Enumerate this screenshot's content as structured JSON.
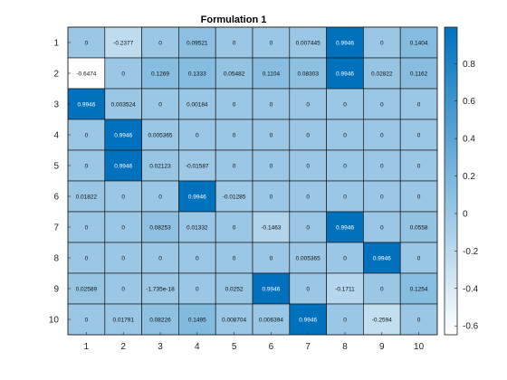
{
  "chart_data": {
    "type": "heatmap",
    "title": "Formulation 1",
    "x_labels": [
      "1",
      "2",
      "3",
      "4",
      "5",
      "6",
      "7",
      "8",
      "9",
      "10"
    ],
    "y_labels": [
      "1",
      "2",
      "3",
      "4",
      "5",
      "6",
      "7",
      "8",
      "9",
      "10"
    ],
    "cell_labels": [
      [
        "0",
        "-0.2377",
        "0",
        "0.09521",
        "0",
        "0",
        "0.007445",
        "0.9946",
        "0",
        "0.1404"
      ],
      [
        "-0.6474",
        "0",
        "0.1269",
        "0.1333",
        "0.05482",
        "0.1104",
        "0.08303",
        "0.9946",
        "0.02822",
        "0.1162"
      ],
      [
        "0.9946",
        "0.003524",
        "0",
        "0.00184",
        "0",
        "0",
        "0",
        "0",
        "0",
        "0"
      ],
      [
        "0",
        "0.9946",
        "0.005365",
        "0",
        "0",
        "0",
        "0",
        "0",
        "0",
        "0"
      ],
      [
        "0",
        "0.9946",
        "0.02123",
        "-0.01587",
        "0",
        "0",
        "0",
        "0",
        "0",
        "0"
      ],
      [
        "0.01822",
        "0",
        "0",
        "0.9946",
        "-0.01285",
        "0",
        "0",
        "0",
        "0",
        "0"
      ],
      [
        "0",
        "0",
        "0.08253",
        "0.01332",
        "0",
        "-0.1463",
        "0",
        "0.9946",
        "0",
        "0.0558"
      ],
      [
        "0",
        "0",
        "0",
        "0",
        "0",
        "0",
        "0.005365",
        "0",
        "0.9946",
        "0"
      ],
      [
        "0.02589",
        "0",
        "-1.735e-18",
        "0",
        "0.0252",
        "0.9946",
        "0",
        "-0.1711",
        "0",
        "0.1254"
      ],
      [
        "0",
        "0.01791",
        "0.08226",
        "0.1495",
        "0.008704",
        "0.006394",
        "0.9946",
        "0",
        "-0.2594",
        "0"
      ]
    ],
    "values": [
      [
        0,
        -0.2377,
        0,
        0.09521,
        0,
        0,
        0.007445,
        0.9946,
        0,
        0.1404
      ],
      [
        -0.6474,
        0,
        0.1269,
        0.1333,
        0.05482,
        0.1104,
        0.08303,
        0.9946,
        0.02822,
        0.1162
      ],
      [
        0.9946,
        0.003524,
        0,
        0.00184,
        0,
        0,
        0,
        0,
        0,
        0
      ],
      [
        0,
        0.9946,
        0.005365,
        0,
        0,
        0,
        0,
        0,
        0,
        0
      ],
      [
        0,
        0.9946,
        0.02123,
        -0.01587,
        0,
        0,
        0,
        0,
        0,
        0
      ],
      [
        0.01822,
        0,
        0,
        0.9946,
        -0.01285,
        0,
        0,
        0,
        0,
        0
      ],
      [
        0,
        0,
        0.08253,
        0.01332,
        0,
        -0.1463,
        0,
        0.9946,
        0,
        0.0558
      ],
      [
        0,
        0,
        0,
        0,
        0,
        0,
        0.005365,
        0,
        0.9946,
        0
      ],
      [
        0.02589,
        0,
        -1.735e-18,
        0,
        0.0252,
        0.9946,
        0,
        -0.1711,
        0,
        0.1254
      ],
      [
        0,
        0.01791,
        0.08226,
        0.1495,
        0.008704,
        0.006394,
        0.9946,
        0,
        -0.2594,
        0
      ]
    ],
    "color_limits": [
      -0.6474,
      0.9946
    ],
    "colormap": [
      "#ffffff",
      "#0072bd"
    ],
    "colorbar_ticks": [
      -0.6,
      -0.4,
      -0.2,
      0,
      0.2,
      0.4,
      0.6,
      0.8
    ],
    "colorbar_tick_labels": [
      "-0.6",
      "-0.4",
      "-0.2",
      "0",
      "0.2",
      "0.4",
      "0.6",
      "0.8"
    ],
    "colorbar_location": "right",
    "grid": true
  }
}
